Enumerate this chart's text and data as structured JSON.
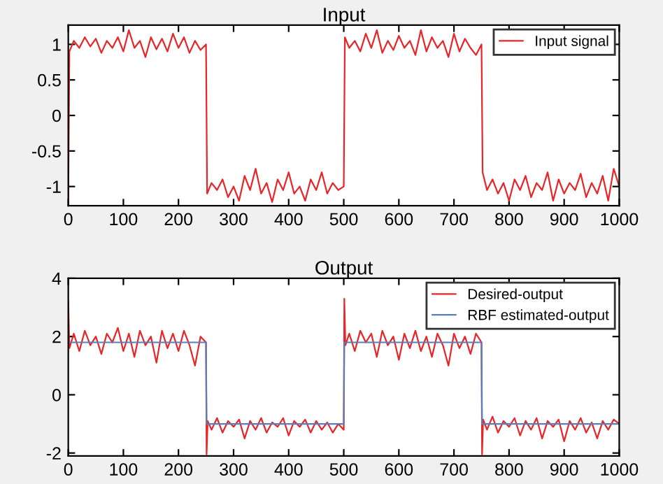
{
  "chart_data": [
    {
      "type": "line",
      "title": "Input",
      "xlim": [
        0,
        1000
      ],
      "xticks": [
        0,
        100,
        200,
        300,
        400,
        500,
        600,
        700,
        800,
        900,
        1000
      ],
      "ylim": [
        -1.27,
        1.27
      ],
      "yticks": [
        -1,
        -0.5,
        0,
        0.5,
        1
      ],
      "legend": "top right",
      "grid": false,
      "series": [
        {
          "name": "Input signal",
          "color": "#e8262a",
          "x": [
            0,
            2,
            10,
            20,
            30,
            40,
            50,
            60,
            70,
            80,
            90,
            100,
            110,
            120,
            130,
            140,
            150,
            160,
            170,
            180,
            190,
            200,
            210,
            220,
            230,
            240,
            250,
            252,
            260,
            270,
            280,
            290,
            300,
            310,
            320,
            330,
            340,
            350,
            360,
            370,
            380,
            390,
            400,
            410,
            420,
            430,
            440,
            450,
            460,
            470,
            480,
            490,
            500,
            502,
            510,
            520,
            530,
            540,
            550,
            560,
            570,
            580,
            590,
            600,
            610,
            620,
            630,
            640,
            650,
            660,
            670,
            680,
            690,
            700,
            710,
            720,
            730,
            740,
            750,
            752,
            760,
            770,
            780,
            790,
            800,
            810,
            820,
            830,
            840,
            850,
            860,
            870,
            880,
            890,
            900,
            910,
            920,
            930,
            940,
            950,
            960,
            970,
            980,
            990,
            1000
          ],
          "values": [
            -1.2,
            0.9,
            1.05,
            0.95,
            1.1,
            0.97,
            1.08,
            0.88,
            1.05,
            0.95,
            1.1,
            0.9,
            1.2,
            0.95,
            1.05,
            0.82,
            1.1,
            0.93,
            1.08,
            0.9,
            1.15,
            0.95,
            1.1,
            0.88,
            1.05,
            0.92,
            1.0,
            -1.1,
            -0.95,
            -1.05,
            -0.9,
            -1.15,
            -1.0,
            -1.2,
            -0.85,
            -1.05,
            -0.75,
            -1.1,
            -0.95,
            -1.22,
            -0.9,
            -1.05,
            -0.8,
            -1.1,
            -1.0,
            -1.2,
            -0.9,
            -1.05,
            -0.8,
            -1.1,
            -0.95,
            -1.05,
            -1.0,
            1.1,
            0.95,
            1.05,
            0.9,
            1.15,
            0.95,
            1.2,
            0.88,
            1.05,
            0.92,
            1.12,
            0.95,
            1.05,
            0.85,
            1.2,
            0.9,
            1.1,
            0.95,
            1.05,
            0.82,
            1.15,
            0.9,
            1.08,
            0.95,
            0.85,
            1.0,
            -0.8,
            -1.05,
            -0.9,
            -1.1,
            -0.95,
            -1.2,
            -0.9,
            -1.05,
            -0.85,
            -1.15,
            -0.95,
            -1.05,
            -0.8,
            -1.2,
            -0.9,
            -1.1,
            -0.95,
            -1.05,
            -0.82,
            -1.15,
            -0.95,
            -1.1,
            -0.85,
            -1.2,
            -0.75,
            -1.0
          ]
        }
      ]
    },
    {
      "type": "line",
      "title": "Output",
      "xlim": [
        0,
        1000
      ],
      "xticks": [
        0,
        100,
        200,
        300,
        400,
        500,
        600,
        700,
        800,
        900,
        1000
      ],
      "ylim": [
        -2.1,
        4
      ],
      "yticks": [
        -2,
        0,
        2,
        4
      ],
      "legend": "top right",
      "grid": false,
      "series": [
        {
          "name": "Desired-output",
          "color": "#e8262a",
          "x": [
            0,
            2,
            10,
            20,
            30,
            40,
            50,
            60,
            70,
            80,
            90,
            100,
            110,
            120,
            130,
            140,
            150,
            160,
            170,
            180,
            190,
            200,
            210,
            220,
            230,
            240,
            250,
            251,
            253,
            260,
            270,
            280,
            290,
            300,
            310,
            320,
            330,
            340,
            350,
            360,
            370,
            380,
            390,
            400,
            410,
            420,
            430,
            440,
            450,
            460,
            470,
            480,
            490,
            500,
            501,
            503,
            510,
            520,
            530,
            540,
            550,
            560,
            570,
            580,
            590,
            600,
            610,
            620,
            630,
            640,
            650,
            660,
            670,
            680,
            690,
            700,
            710,
            720,
            730,
            740,
            750,
            751,
            753,
            760,
            770,
            780,
            790,
            800,
            810,
            820,
            830,
            840,
            850,
            860,
            870,
            880,
            890,
            900,
            910,
            920,
            930,
            940,
            950,
            960,
            970,
            980,
            990,
            1000
          ],
          "values": [
            3.2,
            1.6,
            2.1,
            1.5,
            2.2,
            1.7,
            2.0,
            1.4,
            2.1,
            1.8,
            2.3,
            1.5,
            2.1,
            1.3,
            2.2,
            1.7,
            2.0,
            1.1,
            2.2,
            1.6,
            2.1,
            1.5,
            2.2,
            1.7,
            1.0,
            2.0,
            1.8,
            -2.05,
            -0.9,
            -1.2,
            -0.8,
            -1.3,
            -0.9,
            -1.1,
            -0.85,
            -1.5,
            -0.9,
            -1.2,
            -0.8,
            -1.3,
            -0.95,
            -1.1,
            -0.8,
            -1.4,
            -0.9,
            -1.1,
            -0.85,
            -1.3,
            -0.9,
            -1.2,
            -0.95,
            -1.3,
            -1.0,
            -1.2,
            3.3,
            1.7,
            2.1,
            1.5,
            2.2,
            1.8,
            2.1,
            1.3,
            2.2,
            1.7,
            2.0,
            1.2,
            2.1,
            1.6,
            2.2,
            1.5,
            2.0,
            1.3,
            2.1,
            1.7,
            1.0,
            2.1,
            1.6,
            2.0,
            1.4,
            2.1,
            1.8,
            -2.05,
            -0.85,
            -1.2,
            -0.75,
            -1.3,
            -0.9,
            -1.1,
            -0.8,
            -1.4,
            -0.9,
            -1.2,
            -0.8,
            -1.5,
            -0.9,
            -1.1,
            -0.85,
            -1.6,
            -0.9,
            -1.2,
            -0.8,
            -1.3,
            -0.95,
            -1.5,
            -0.9,
            -1.2,
            -0.85,
            -1.0
          ]
        },
        {
          "name": "RBF estimated-output",
          "color": "#5b7fb5",
          "x": [
            0,
            250,
            251,
            500,
            501,
            750,
            751,
            1000
          ],
          "values": [
            1.8,
            1.8,
            -1.0,
            -1.0,
            1.8,
            1.8,
            -1.0,
            -1.0
          ]
        }
      ]
    }
  ]
}
